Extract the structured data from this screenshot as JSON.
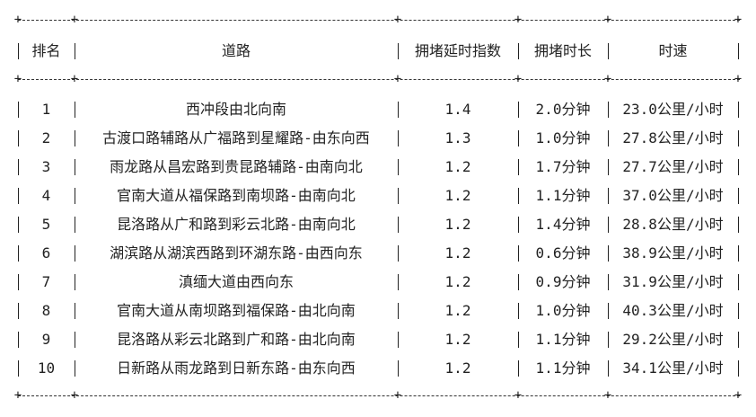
{
  "table": {
    "headers": [
      "排名",
      "道路",
      "拥堵延时指数",
      "拥堵时长",
      "时速"
    ],
    "rows": [
      [
        "1",
        "西冲段由北向南",
        "1.4",
        "2.0分钟",
        "23.0公里/小时"
      ],
      [
        "2",
        "古渡口路辅路从广福路到星耀路-由东向西",
        "1.3",
        "1.0分钟",
        "27.8公里/小时"
      ],
      [
        "3",
        "雨龙路从昌宏路到贵昆路辅路-由南向北",
        "1.2",
        "1.7分钟",
        "27.7公里/小时"
      ],
      [
        "4",
        "官南大道从福保路到南坝路-由南向北",
        "1.2",
        "1.1分钟",
        "37.0公里/小时"
      ],
      [
        "5",
        "昆洛路从广和路到彩云北路-由南向北",
        "1.2",
        "1.4分钟",
        "28.8公里/小时"
      ],
      [
        "6",
        "湖滨路从湖滨西路到环湖东路-由西向东",
        "1.2",
        "0.6分钟",
        "38.9公里/小时"
      ],
      [
        "7",
        "滇缅大道由西向东",
        "1.2",
        "0.9分钟",
        "31.9公里/小时"
      ],
      [
        "8",
        "官南大道从南坝路到福保路-由北向南",
        "1.2",
        "1.0分钟",
        "40.3公里/小时"
      ],
      [
        "9",
        "昆洛路从彩云北路到广和路-由北向南",
        "1.2",
        "1.1分钟",
        "29.2公里/小时"
      ],
      [
        "10",
        "日新路从雨龙路到日新东路-由东向西",
        "1.2",
        "1.1分钟",
        "34.1公里/小时"
      ]
    ]
  }
}
